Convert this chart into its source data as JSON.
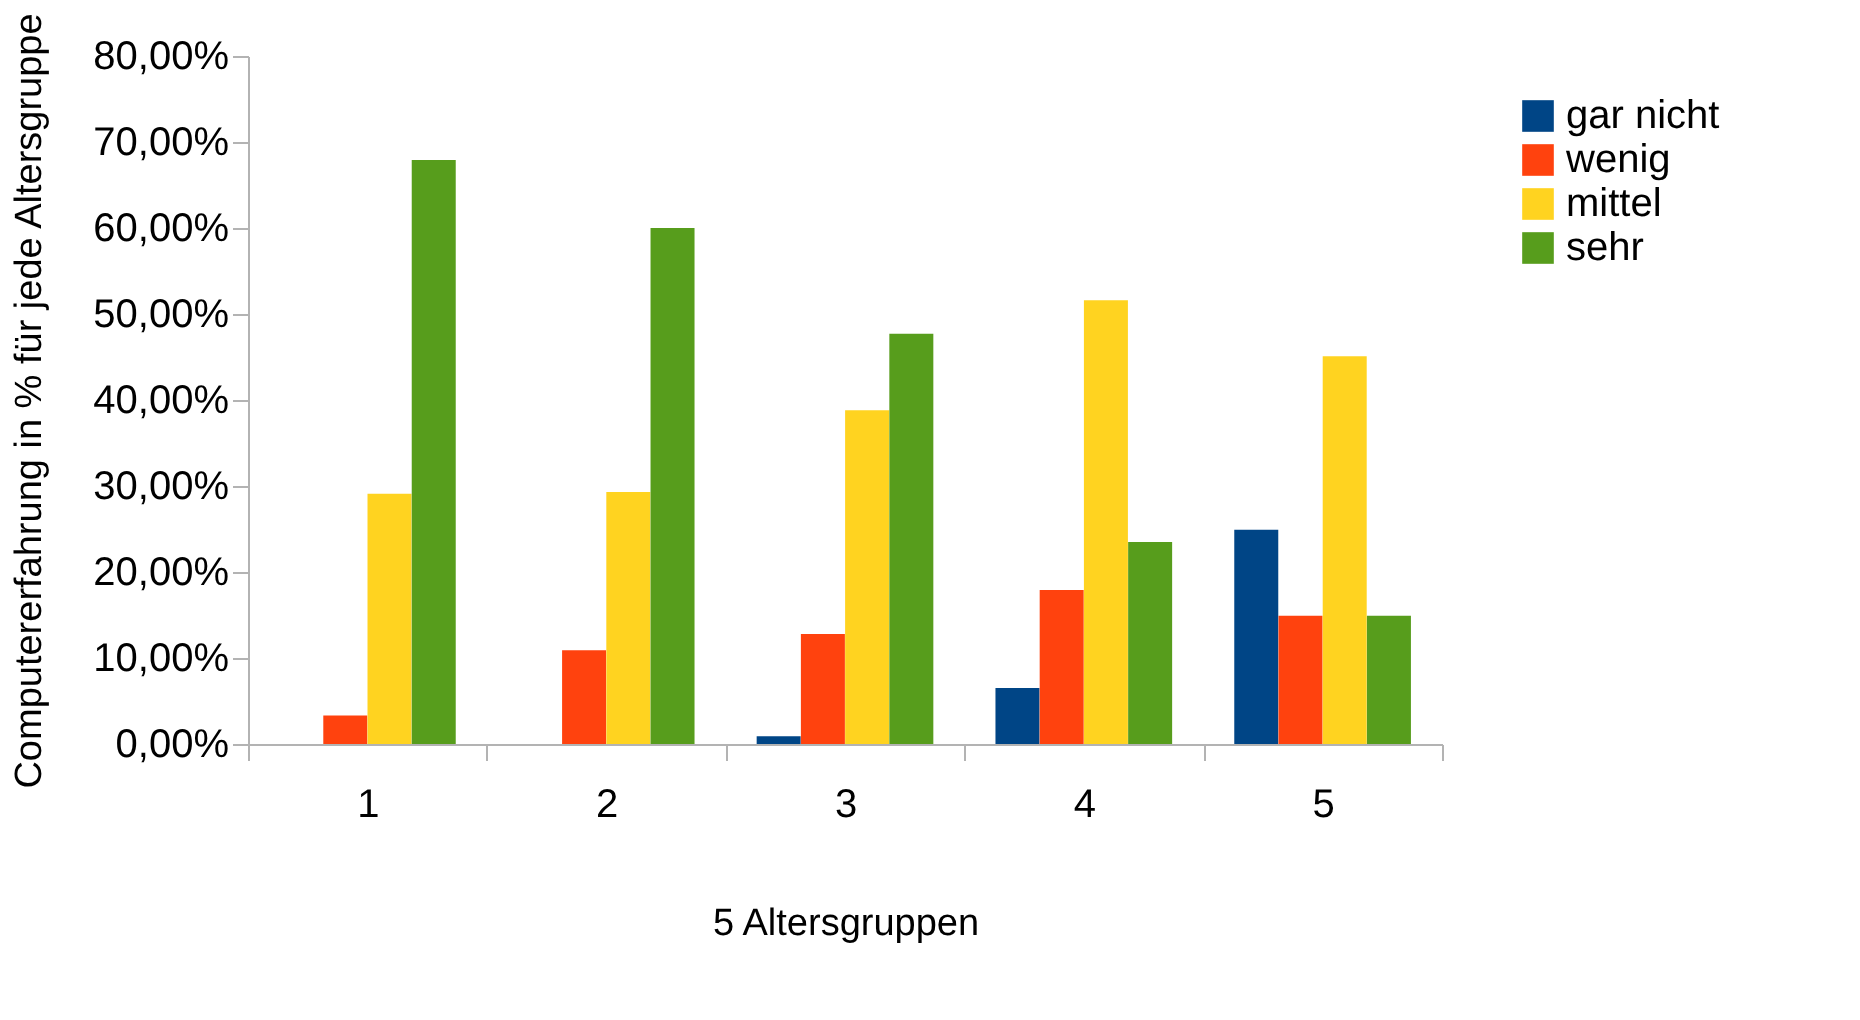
{
  "chart_data": {
    "type": "bar",
    "xlabel": "5 Altersgruppen",
    "ylabel": "Computererfahrung in % für jede Altersgruppe",
    "categories": [
      "1",
      "2",
      "3",
      "4",
      "5"
    ],
    "series": [
      {
        "name": "gar nicht",
        "color": "#004586",
        "values": [
          0,
          0,
          0.9,
          6.5,
          24.9
        ]
      },
      {
        "name": "wenig",
        "color": "#ff420e",
        "values": [
          3.3,
          10.9,
          12.8,
          17.9,
          14.9
        ]
      },
      {
        "name": "mittel",
        "color": "#ffd320",
        "values": [
          29.1,
          29.3,
          38.8,
          51.6,
          45.1
        ]
      },
      {
        "name": "sehr",
        "color": "#579d1c",
        "values": [
          67.9,
          60,
          47.7,
          23.5,
          14.9
        ]
      }
    ],
    "ylim": [
      0,
      80
    ],
    "yticks": [
      {
        "value": 0,
        "label": "0,00%"
      },
      {
        "value": 10,
        "label": "10,00%"
      },
      {
        "value": 20,
        "label": "20,00%"
      },
      {
        "value": 30,
        "label": "30,00%"
      },
      {
        "value": 40,
        "label": "40,00%"
      },
      {
        "value": 50,
        "label": "50,00%"
      },
      {
        "value": 60,
        "label": "60,00%"
      },
      {
        "value": 70,
        "label": "70,00%"
      },
      {
        "value": 80,
        "label": "80,00%"
      }
    ],
    "grid": false,
    "legend": "right"
  }
}
